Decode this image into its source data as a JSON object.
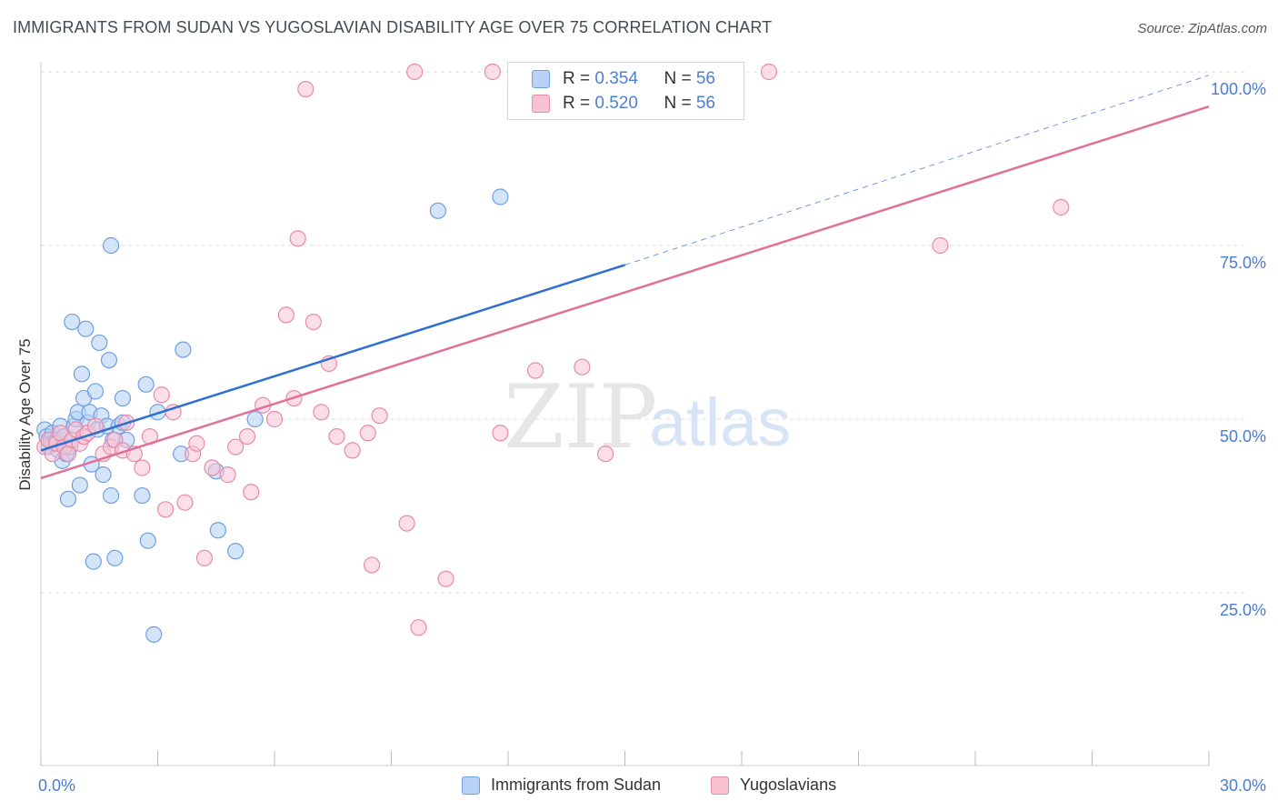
{
  "header": {
    "title": "IMMIGRANTS FROM SUDAN VS YUGOSLAVIAN DISABILITY AGE OVER 75 CORRELATION CHART",
    "source": "Source: ZipAtlas.com"
  },
  "watermark": {
    "zip": "ZIP",
    "atlas": "atlas"
  },
  "legend": {
    "rows": [
      {
        "r_label": "R = ",
        "r_value": "0.354",
        "n_label": "N = ",
        "n_value": "56"
      },
      {
        "r_label": "R = ",
        "r_value": "0.520",
        "n_label": "N = ",
        "n_value": "56"
      }
    ]
  },
  "bottom_legend": [
    "Immigrants from Sudan",
    "Yugoslavians"
  ],
  "colors": {
    "sudan_fill": "#b8d2f5",
    "sudan_stroke": "#6f9fe0",
    "sudan_line": "#2f6fd0",
    "yugo_fill": "#f7c3d3",
    "yugo_stroke": "#e88aa8",
    "yugo_line": "#e0709a",
    "tick_label": "#4a7cd1",
    "grid": "#dddddd"
  },
  "chart_data": {
    "type": "scatter",
    "title": "IMMIGRANTS FROM SUDAN VS YUGOSLAVIAN DISABILITY AGE OVER 75 CORRELATION CHART",
    "xlabel": "",
    "ylabel": "Disability Age Over 75",
    "xlim": [
      0,
      30
    ],
    "ylim": [
      0,
      103
    ],
    "x_tick_labels": [
      "0.0%",
      "30.0%"
    ],
    "y_ticks": [
      25,
      50,
      75,
      100
    ],
    "y_tick_labels": [
      "25.0%",
      "50.0%",
      "75.0%",
      "100.0%"
    ],
    "grid": "horizontal dashed",
    "legend_position": "top-center",
    "series": [
      {
        "name": "Immigrants from Sudan",
        "r": 0.354,
        "n": 56,
        "trend": {
          "x0": 0,
          "y0": 45.5,
          "x1": 15,
          "y1": 72.2,
          "dashed_to_x": 30,
          "dashed_to_y": 99.5
        },
        "points": [
          [
            0.1,
            48.5
          ],
          [
            0.15,
            47.5
          ],
          [
            0.2,
            46
          ],
          [
            0.25,
            47
          ],
          [
            0.3,
            48
          ],
          [
            0.35,
            46.5
          ],
          [
            0.4,
            47
          ],
          [
            0.45,
            45.5
          ],
          [
            0.5,
            49
          ],
          [
            0.55,
            44
          ],
          [
            0.6,
            46
          ],
          [
            0.65,
            45
          ],
          [
            0.7,
            38.5
          ],
          [
            0.75,
            46
          ],
          [
            0.8,
            64
          ],
          [
            0.85,
            49
          ],
          [
            0.9,
            50
          ],
          [
            0.95,
            51
          ],
          [
            1.0,
            40.5
          ],
          [
            1.05,
            56.5
          ],
          [
            1.1,
            53
          ],
          [
            1.15,
            63
          ],
          [
            1.2,
            49.5
          ],
          [
            1.25,
            51
          ],
          [
            1.3,
            43.5
          ],
          [
            1.35,
            29.5
          ],
          [
            1.4,
            54
          ],
          [
            1.45,
            48.5
          ],
          [
            1.5,
            61
          ],
          [
            1.55,
            50.5
          ],
          [
            1.6,
            42
          ],
          [
            1.7,
            49
          ],
          [
            1.75,
            58.5
          ],
          [
            1.8,
            39
          ],
          [
            1.85,
            47
          ],
          [
            1.9,
            30
          ],
          [
            2.0,
            49
          ],
          [
            2.1,
            53
          ],
          [
            2.2,
            47
          ],
          [
            2.6,
            39
          ],
          [
            2.7,
            55
          ],
          [
            2.75,
            32.5
          ],
          [
            2.9,
            19
          ],
          [
            3.0,
            51
          ],
          [
            3.6,
            45
          ],
          [
            3.65,
            60
          ],
          [
            4.5,
            42.5
          ],
          [
            4.55,
            34
          ],
          [
            5.0,
            31
          ],
          [
            5.5,
            50
          ],
          [
            10.2,
            80
          ],
          [
            11.8,
            82
          ],
          [
            1.8,
            75
          ],
          [
            0.3,
            46.5
          ],
          [
            2.1,
            49.5
          ],
          [
            0.6,
            47.5
          ]
        ]
      },
      {
        "name": "Yugoslavians",
        "r": 0.52,
        "n": 56,
        "trend": {
          "x0": 0,
          "y0": 41.5,
          "x1": 30,
          "y1": 95
        },
        "points": [
          [
            0.1,
            46
          ],
          [
            0.2,
            47
          ],
          [
            0.3,
            45
          ],
          [
            0.4,
            46.5
          ],
          [
            0.5,
            48
          ],
          [
            0.6,
            46
          ],
          [
            0.7,
            45
          ],
          [
            0.8,
            47
          ],
          [
            0.9,
            48.5
          ],
          [
            1.0,
            46.5
          ],
          [
            1.1,
            47.5
          ],
          [
            1.2,
            48
          ],
          [
            1.4,
            49
          ],
          [
            1.6,
            45
          ],
          [
            1.8,
            46
          ],
          [
            1.9,
            47
          ],
          [
            2.1,
            45.5
          ],
          [
            2.2,
            49.5
          ],
          [
            2.4,
            45
          ],
          [
            2.6,
            43
          ],
          [
            2.8,
            47.5
          ],
          [
            3.1,
            53.5
          ],
          [
            3.2,
            37
          ],
          [
            3.4,
            51
          ],
          [
            3.7,
            38
          ],
          [
            3.9,
            45
          ],
          [
            4.0,
            46.5
          ],
          [
            4.2,
            30
          ],
          [
            4.4,
            43
          ],
          [
            4.8,
            42
          ],
          [
            5.0,
            46
          ],
          [
            5.3,
            47.5
          ],
          [
            5.4,
            39.5
          ],
          [
            5.7,
            52
          ],
          [
            6.0,
            50
          ],
          [
            6.3,
            65
          ],
          [
            6.5,
            53
          ],
          [
            6.6,
            76
          ],
          [
            6.8,
            97.5
          ],
          [
            7.0,
            64
          ],
          [
            7.2,
            51
          ],
          [
            7.4,
            58
          ],
          [
            7.6,
            47.5
          ],
          [
            8.0,
            45.5
          ],
          [
            8.4,
            48
          ],
          [
            8.5,
            29
          ],
          [
            8.7,
            50.5
          ],
          [
            9.4,
            35
          ],
          [
            9.6,
            100
          ],
          [
            9.7,
            20
          ],
          [
            10.4,
            27
          ],
          [
            11.6,
            100
          ],
          [
            11.8,
            48
          ],
          [
            12.7,
            57
          ],
          [
            13.9,
            57.5
          ],
          [
            14.5,
            45
          ]
        ]
      }
    ],
    "extra_points_yugo": [
      [
        18.7,
        100
      ],
      [
        23.1,
        75
      ],
      [
        26.2,
        80.5
      ]
    ]
  }
}
